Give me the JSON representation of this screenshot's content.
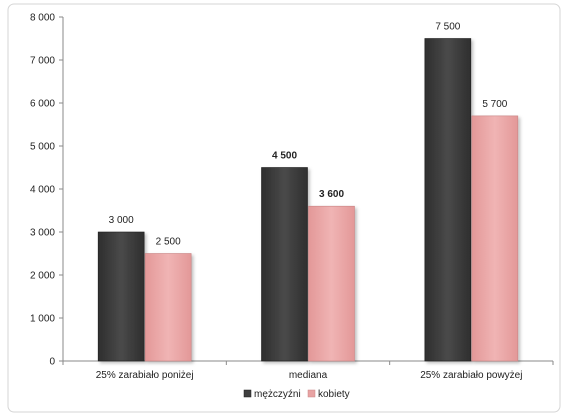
{
  "chart_data": {
    "type": "bar",
    "categories": [
      "25% zarabiało poniżej",
      "mediana",
      "25% zarabiało powyżej"
    ],
    "series": [
      {
        "name": "mężczyźni",
        "values": [
          3000,
          4500,
          7500
        ],
        "data_labels": [
          "3 000",
          "4 500",
          "7 500"
        ],
        "color": "#3f3f3f"
      },
      {
        "name": "kobiety",
        "values": [
          2500,
          3600,
          5700
        ],
        "data_labels": [
          "2 500",
          "3 600",
          "5 700"
        ],
        "color": "#e8a3a3"
      }
    ],
    "bold_label_category_index": 1,
    "ylim": [
      0,
      8000
    ],
    "yticks": [
      0,
      1000,
      2000,
      3000,
      4000,
      5000,
      6000,
      7000,
      8000
    ],
    "ytick_labels": [
      "0",
      "1 000",
      "2 000",
      "3 000",
      "4 000",
      "5 000",
      "6 000",
      "7 000",
      "8 000"
    ],
    "grid": false,
    "legend_position": "bottom"
  }
}
